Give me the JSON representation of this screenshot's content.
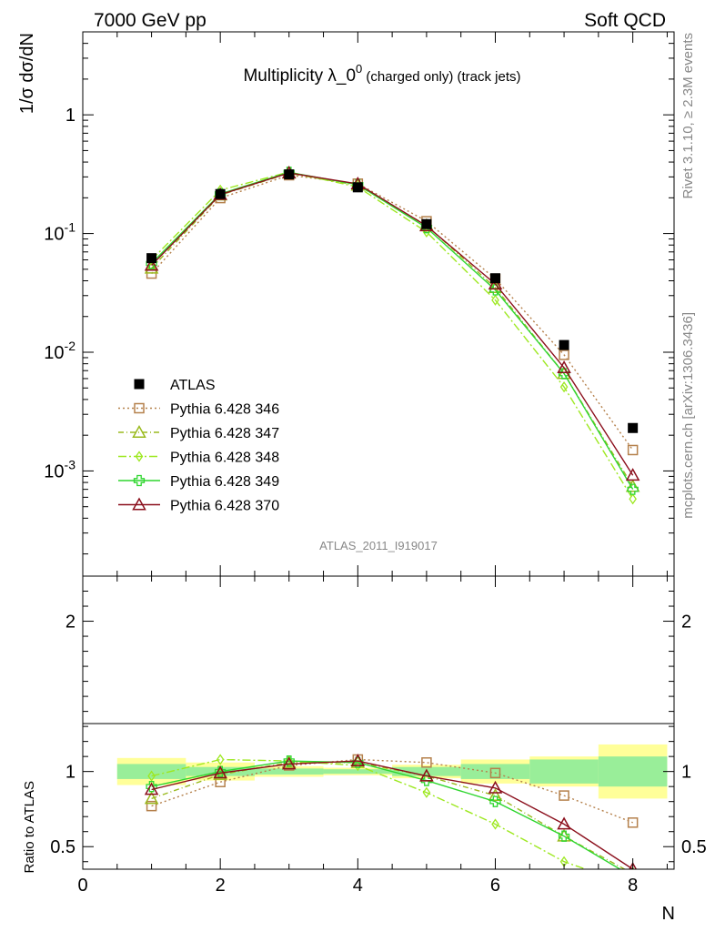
{
  "header": {
    "left": "7000 GeV pp",
    "right": "Soft QCD"
  },
  "side_labels": {
    "top": "Rivet 3.1.10, ≥ 2.3M events",
    "bottom": "mcplots.cern.ch [arXiv:1306.3436]"
  },
  "analysis_id": "ATLAS_2011_I919017",
  "title": {
    "main": "Multiplicity λ_0",
    "superscript": "0",
    "suffix": " (charged only) (track jets)"
  },
  "chart_data": [
    {
      "type": "scatter",
      "panel": "main",
      "y_scale": "log",
      "ylabel": "1/σ dσ/dN",
      "xlim": [
        0,
        8.6
      ],
      "ylim": [
        0.00013,
        5
      ],
      "y_tick_labels": [
        "1",
        "10^-1",
        "10^-2",
        "10^-3"
      ],
      "legend_placement": "bottom-left",
      "x": [
        1,
        2,
        3,
        4,
        5,
        6,
        7,
        8
      ],
      "series": [
        {
          "name": "ATLAS",
          "color": "#000000",
          "marker": "filled-square",
          "line": "none",
          "values": [
            0.062,
            0.215,
            0.315,
            0.245,
            0.12,
            0.042,
            0.0115,
            0.0023
          ]
        },
        {
          "name": "Pythia 6.428 346",
          "color": "#b5814c",
          "marker": "open-square",
          "line": "dotted",
          "values": [
            0.046,
            0.199,
            0.31,
            0.263,
            0.127,
            0.0415,
            0.0095,
            0.0015
          ]
        },
        {
          "name": "Pythia 6.428 347",
          "color": "#9aba1e",
          "marker": "open-triangle",
          "line": "dashdot",
          "values": [
            0.051,
            0.211,
            0.322,
            0.255,
            0.117,
            0.035,
            0.0066,
            0.00074
          ]
        },
        {
          "name": "Pythia 6.428 348",
          "color": "#9de820",
          "marker": "open-diamond",
          "line": "dashdot-long",
          "values": [
            0.06,
            0.232,
            0.33,
            0.247,
            0.103,
            0.0275,
            0.0051,
            0.00058
          ]
        },
        {
          "name": "Pythia 6.428 349",
          "color": "#2fd62f",
          "marker": "open-cross",
          "line": "solid",
          "values": [
            0.056,
            0.216,
            0.328,
            0.258,
            0.112,
            0.0335,
            0.0066,
            0.0007
          ]
        },
        {
          "name": "Pythia 6.428 370",
          "color": "#8b0f1c",
          "marker": "open-triangle",
          "line": "solid",
          "values": [
            0.054,
            0.213,
            0.324,
            0.262,
            0.116,
            0.0375,
            0.0074,
            0.00092
          ]
        }
      ]
    },
    {
      "type": "line",
      "panel": "ratio",
      "xlabel": "N",
      "ylabel": "Ratio to ATLAS",
      "xlim": [
        0,
        8.6
      ],
      "ylim": [
        0.35,
        2.3
      ],
      "x_tick_labels": [
        "0",
        "2",
        "4",
        "6",
        "8"
      ],
      "y_tick_labels": [
        "0.5",
        "1",
        "2"
      ],
      "x": [
        1,
        2,
        3,
        4,
        5,
        6,
        7,
        8
      ],
      "band_edges": [
        0.5,
        1.5,
        2.5,
        3.5,
        4.5,
        5.5,
        6.5,
        7.5,
        8.5
      ],
      "band_stat": [
        0.05,
        0.03,
        0.02,
        0.015,
        0.03,
        0.05,
        0.08,
        0.1
      ],
      "band_total": [
        0.09,
        0.06,
        0.035,
        0.025,
        0.045,
        0.08,
        0.1,
        0.18
      ],
      "series": [
        {
          "name": "Pythia 6.428 346",
          "values": [
            0.77,
            0.93,
            1.04,
            1.08,
            1.06,
            0.99,
            0.84,
            0.66
          ]
        },
        {
          "name": "Pythia 6.428 347",
          "values": [
            0.82,
            0.98,
            1.06,
            1.06,
            0.97,
            0.84,
            0.57,
            0.32
          ]
        },
        {
          "name": "Pythia 6.428 348",
          "values": [
            0.97,
            1.08,
            1.07,
            1.04,
            0.86,
            0.65,
            0.4,
            0.24
          ]
        },
        {
          "name": "Pythia 6.428 349",
          "values": [
            0.9,
            1.0,
            1.07,
            1.06,
            0.94,
            0.8,
            0.57,
            0.3
          ]
        },
        {
          "name": "Pythia 6.428 370",
          "values": [
            0.88,
            0.99,
            1.05,
            1.07,
            0.97,
            0.89,
            0.65,
            0.35
          ]
        }
      ]
    }
  ]
}
